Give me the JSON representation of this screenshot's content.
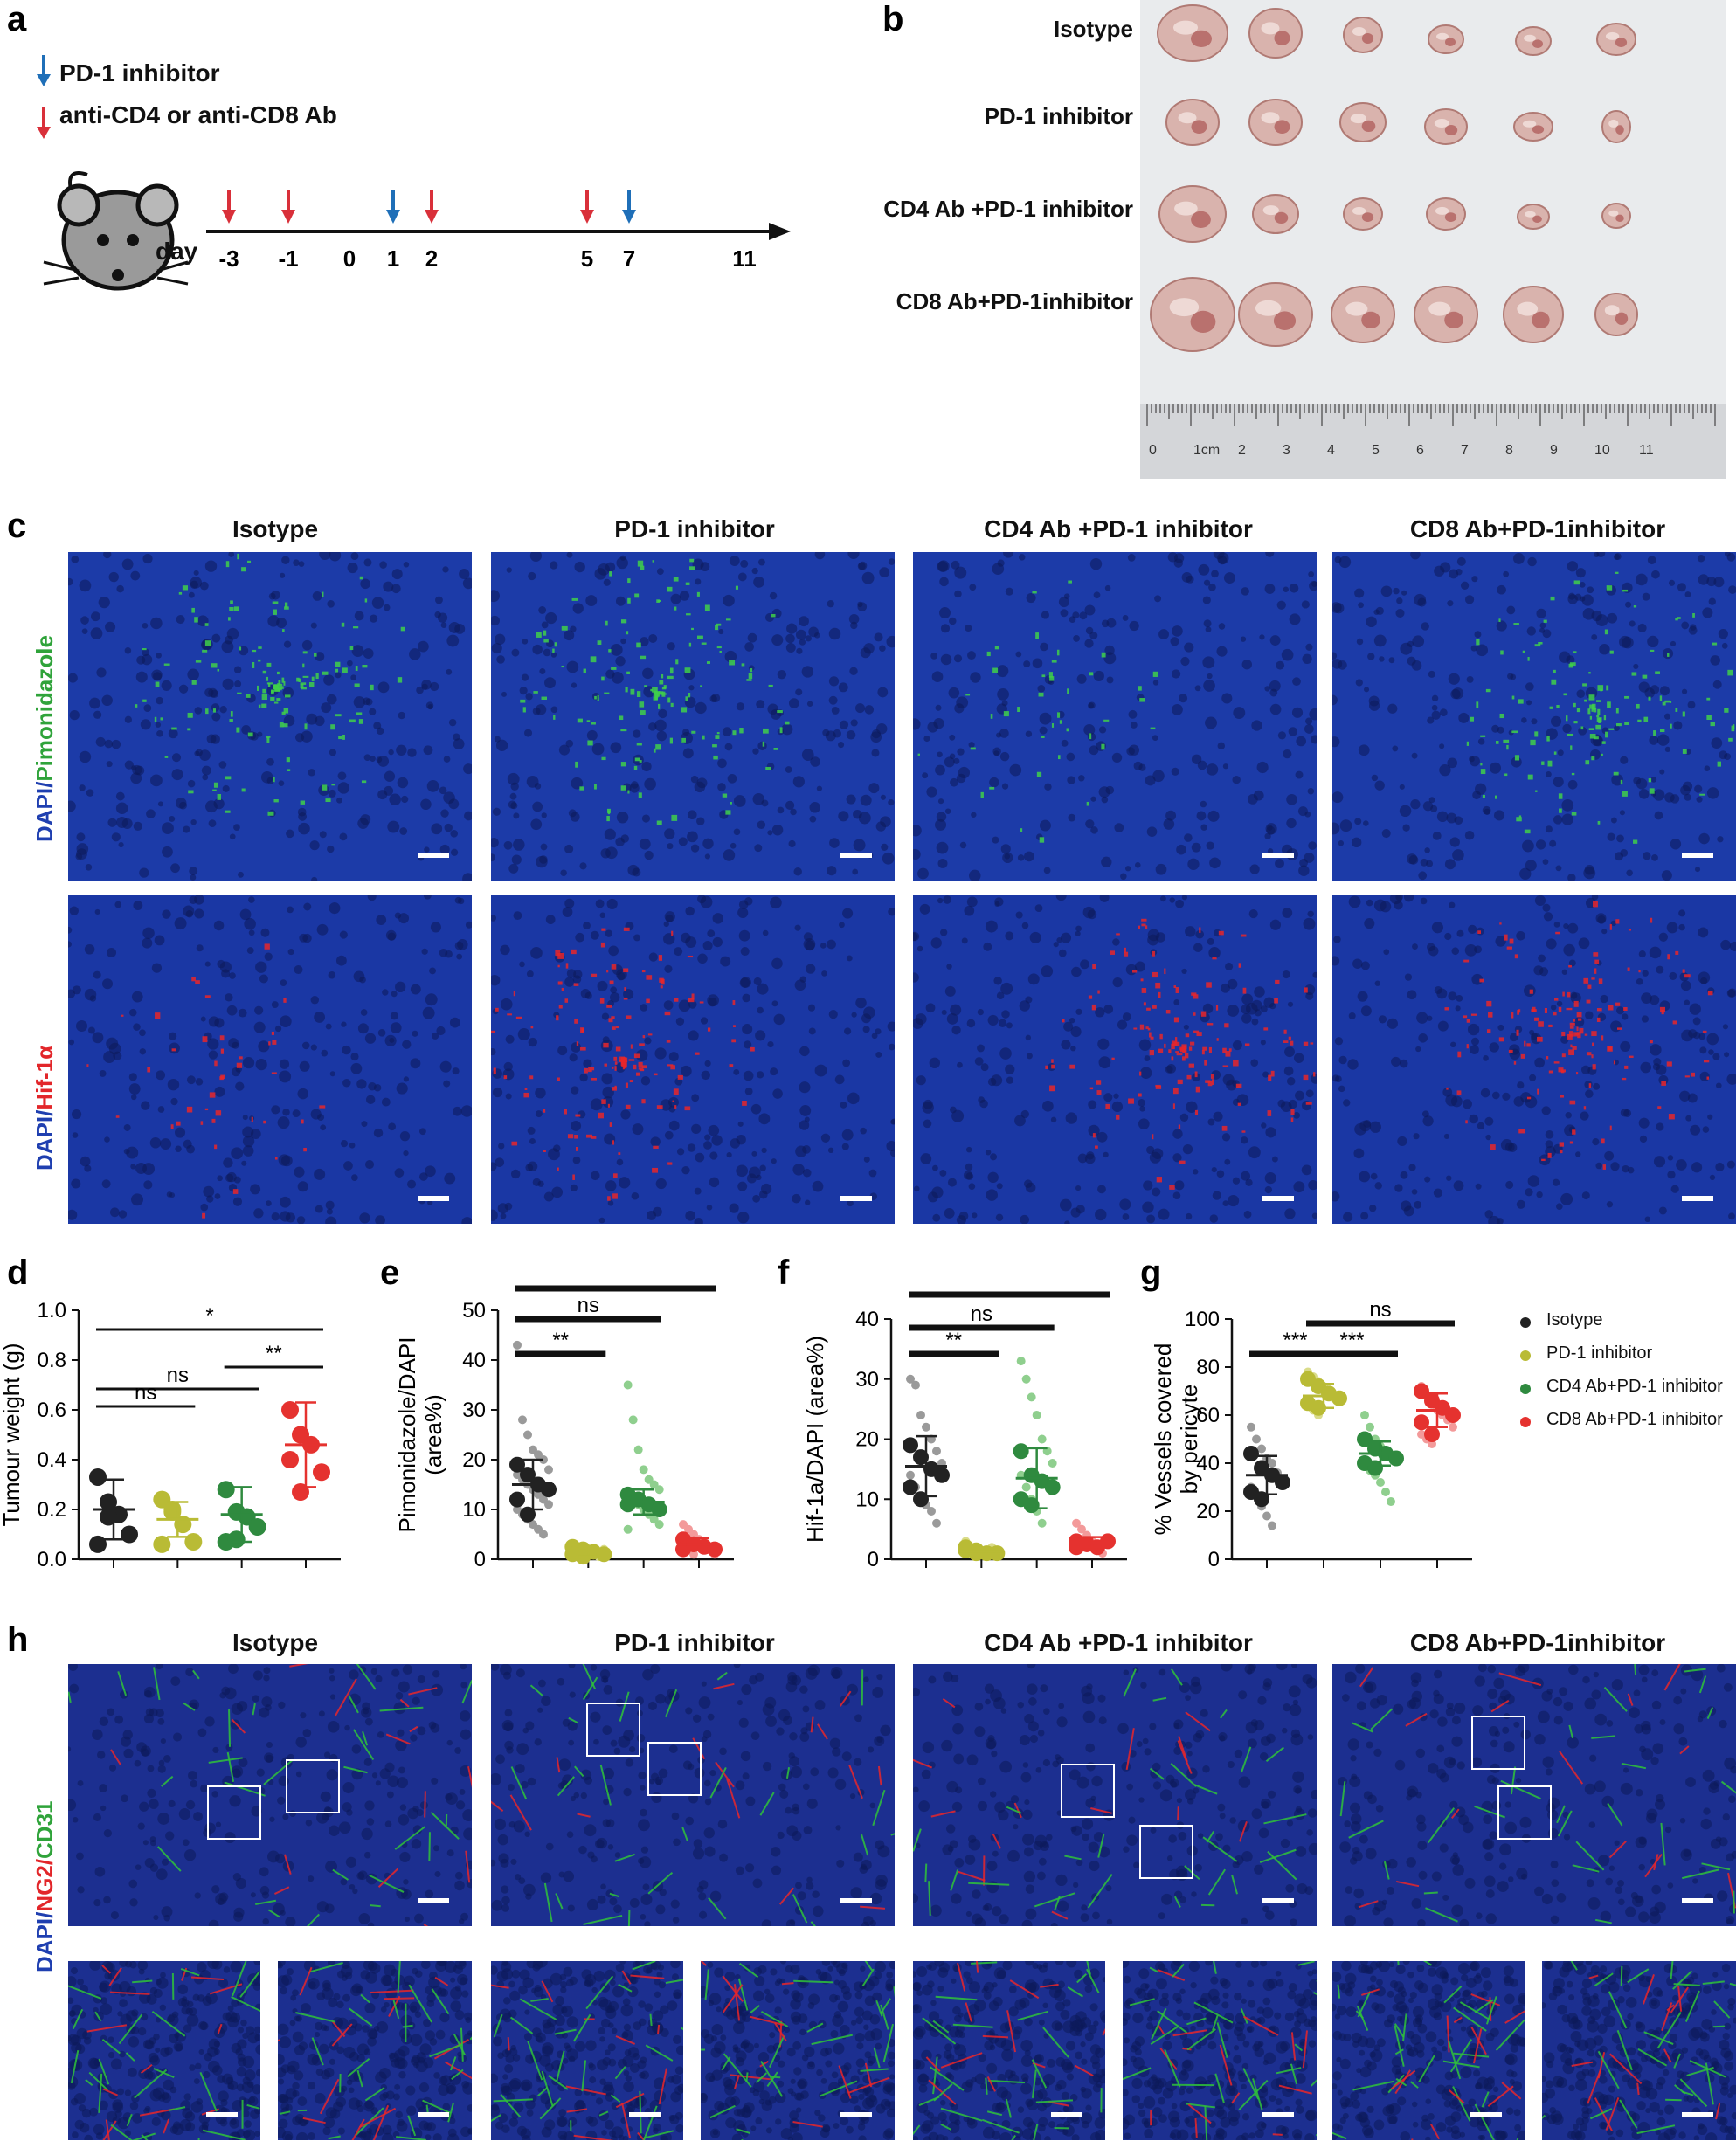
{
  "panels": {
    "a": "a",
    "b": "b",
    "c": "c",
    "d": "d",
    "e": "e",
    "f": "f",
    "g": "g",
    "h": "h"
  },
  "panel_a": {
    "legend": [
      {
        "label": "PD-1 inhibitor",
        "color": "#1f6fb8"
      },
      {
        "label": "anti-CD4 or anti-CD8 Ab",
        "color": "#d9303a"
      }
    ],
    "day_label": "day",
    "days": [
      "-3",
      "-1",
      "0",
      "1",
      "2",
      "5",
      "7",
      "11"
    ],
    "arrows": [
      {
        "day": "-3",
        "color": "#d9303a"
      },
      {
        "day": "-1",
        "color": "#d9303a"
      },
      {
        "day": "1",
        "color": "#1f6fb8"
      },
      {
        "day": "2",
        "color": "#d9303a"
      },
      {
        "day": "5",
        "color": "#d9303a"
      },
      {
        "day": "7",
        "color": "#1f6fb8"
      }
    ]
  },
  "groups": [
    "Isotype",
    "PD-1 inhibitor",
    "CD4 Ab +PD-1 inhibitor",
    "CD8 Ab+PD-1inhibitor"
  ],
  "ruler_numbers": [
    "0",
    "1cm",
    "2",
    "3",
    "4",
    "5",
    "6",
    "7",
    "8",
    "9",
    "10",
    "11"
  ],
  "panel_c": {
    "row1_label_a": "DAPI/",
    "row1_label_b": "Pimonidazole",
    "row2_label_a": "DAPI/",
    "row2_label_b": "Hif-1α"
  },
  "panel_h": {
    "row_label_a": "DAPI/",
    "row_label_b": "NG2/",
    "row_label_c": "CD31"
  },
  "colors": {
    "isotype": "#222222",
    "pd1": "#b9bb35",
    "cd4": "#2f8a3f",
    "cd8": "#e5322f"
  },
  "chart_data": [
    {
      "type": "scatter",
      "panel": "d",
      "ylabel": "Tumour weight (g)",
      "ylim": [
        0,
        1.0
      ],
      "yticks": [
        "0.0",
        "0.2",
        "0.4",
        "0.6",
        "0.8",
        "1.0"
      ],
      "groups": [
        "Isotype",
        "PD-1 inhibitor",
        "CD4 Ab+PD-1 inhibitor",
        "CD8 Ab+PD-1 inhibitor"
      ],
      "series": [
        {
          "values": [
            0.33,
            0.23,
            0.18,
            0.1,
            0.06,
            0.17
          ],
          "mean": 0.2,
          "sd": 0.12
        },
        {
          "values": [
            0.24,
            0.2,
            0.14,
            0.07,
            0.06,
            0.19
          ],
          "mean": 0.16,
          "sd": 0.07
        },
        {
          "values": [
            0.28,
            0.19,
            0.17,
            0.13,
            0.07,
            0.08
          ],
          "mean": 0.18,
          "sd": 0.11
        },
        {
          "values": [
            0.6,
            0.5,
            0.46,
            0.35,
            0.4,
            0.27
          ],
          "mean": 0.46,
          "sd": 0.17
        }
      ],
      "brackets": [
        {
          "from": 0,
          "to": 3,
          "label": "*"
        },
        {
          "from": 2,
          "to": 3,
          "label": "**"
        },
        {
          "from": 0,
          "to": 2,
          "label": "ns"
        },
        {
          "from": 0,
          "to": 1,
          "label": "ns"
        }
      ]
    },
    {
      "type": "scatter",
      "panel": "e",
      "ylabel": "Pimonidazole/DAPI (area%)",
      "ylim": [
        0,
        50
      ],
      "yticks": [
        "0",
        "10",
        "20",
        "30",
        "40",
        "50"
      ],
      "series": [
        {
          "big": [
            19,
            17,
            15,
            14,
            12,
            9
          ],
          "small": [
            43,
            28,
            25,
            22,
            21,
            20,
            18,
            17,
            16,
            15,
            14,
            13,
            12,
            11,
            10,
            9,
            8,
            7,
            6,
            5
          ],
          "mean": 15,
          "sd": 5
        },
        {
          "big": [
            2.5,
            2,
            1.5,
            1,
            1,
            0.5
          ],
          "small": [
            3,
            2.5,
            2,
            1.5,
            1,
            0.5,
            2,
            1,
            0.5,
            1.5
          ],
          "mean": 1.5,
          "sd": 1
        },
        {
          "big": [
            13,
            12,
            11,
            10,
            11,
            12
          ],
          "small": [
            35,
            28,
            22,
            18,
            16,
            15,
            14,
            13,
            12,
            11,
            10,
            9,
            8,
            7,
            6
          ],
          "mean": 11.5,
          "sd": 2.5
        },
        {
          "big": [
            4,
            3,
            2.5,
            2,
            2,
            3
          ],
          "small": [
            7,
            6,
            5,
            4,
            3,
            2,
            1,
            3,
            2,
            1,
            4
          ],
          "mean": 3,
          "sd": 1.2
        }
      ],
      "brackets": [
        {
          "from": 0,
          "to": 3,
          "label": "**"
        },
        {
          "from": 0,
          "to": 2,
          "label": "ns"
        },
        {
          "from": 0,
          "to": 1,
          "label": "**"
        }
      ]
    },
    {
      "type": "scatter",
      "panel": "f",
      "ylabel": "Hif-1a/DAPI (area%)",
      "ylim": [
        0,
        40
      ],
      "yticks": [
        "0",
        "10",
        "20",
        "30",
        "40"
      ],
      "series": [
        {
          "big": [
            19,
            17,
            15,
            14,
            12,
            10
          ],
          "small": [
            30,
            29,
            24,
            22,
            20,
            18,
            16,
            14,
            12,
            10,
            9,
            8,
            6
          ],
          "mean": 15.5,
          "sd": 5
        },
        {
          "big": [
            2,
            1.5,
            1,
            1,
            1.5,
            1
          ],
          "small": [
            3,
            2,
            1.5,
            1,
            0.5,
            2,
            1
          ],
          "mean": 1.3,
          "sd": 0.6
        },
        {
          "big": [
            18,
            14,
            13,
            12,
            10,
            9
          ],
          "small": [
            33,
            30,
            27,
            24,
            20,
            18,
            16,
            14,
            12,
            10,
            8,
            6
          ],
          "mean": 13.5,
          "sd": 5
        },
        {
          "big": [
            3,
            2.5,
            2,
            3,
            2,
            2.5
          ],
          "small": [
            6,
            5,
            4,
            3,
            2,
            1,
            3,
            2
          ],
          "mean": 2.7,
          "sd": 1
        }
      ],
      "brackets": [
        {
          "from": 0,
          "to": 3,
          "label": "**"
        },
        {
          "from": 0,
          "to": 2,
          "label": "ns"
        },
        {
          "from": 0,
          "to": 1,
          "label": "**"
        }
      ]
    },
    {
      "type": "scatter",
      "panel": "g",
      "ylabel": "% Vessels covered by pericyte",
      "ylim": [
        0,
        100
      ],
      "yticks": [
        "0",
        "20",
        "40",
        "60",
        "80",
        "100"
      ],
      "series": [
        {
          "big": [
            44,
            38,
            35,
            32,
            28,
            25
          ],
          "small": [
            55,
            50,
            46,
            42,
            40,
            36,
            33,
            30,
            27,
            22,
            18,
            14
          ],
          "mean": 35,
          "sd": 8
        },
        {
          "big": [
            75,
            72,
            69,
            67,
            65,
            63
          ],
          "small": [
            78,
            76,
            74,
            72,
            70,
            68,
            66,
            64,
            62,
            60
          ],
          "mean": 68,
          "sd": 5
        },
        {
          "big": [
            50,
            46,
            44,
            42,
            40,
            38
          ],
          "small": [
            60,
            55,
            50,
            47,
            45,
            43,
            41,
            39,
            37,
            35,
            32,
            28,
            24
          ],
          "mean": 44,
          "sd": 5
        },
        {
          "big": [
            70,
            66,
            63,
            60,
            57,
            52
          ],
          "small": [
            72,
            68,
            65,
            62,
            60,
            58,
            55,
            52,
            50,
            48
          ],
          "mean": 62,
          "sd": 7
        }
      ],
      "brackets": [
        {
          "from": 0,
          "to": 1,
          "label": "***"
        },
        {
          "from": 1,
          "to": 2,
          "label": "***"
        },
        {
          "from": 1,
          "to": 3,
          "label": "ns"
        }
      ],
      "legend": [
        "Isotype",
        "PD-1 inhibitor",
        "CD4 Ab+PD-1 inhibitor",
        "CD8 Ab+PD-1 inhibitor"
      ]
    }
  ]
}
